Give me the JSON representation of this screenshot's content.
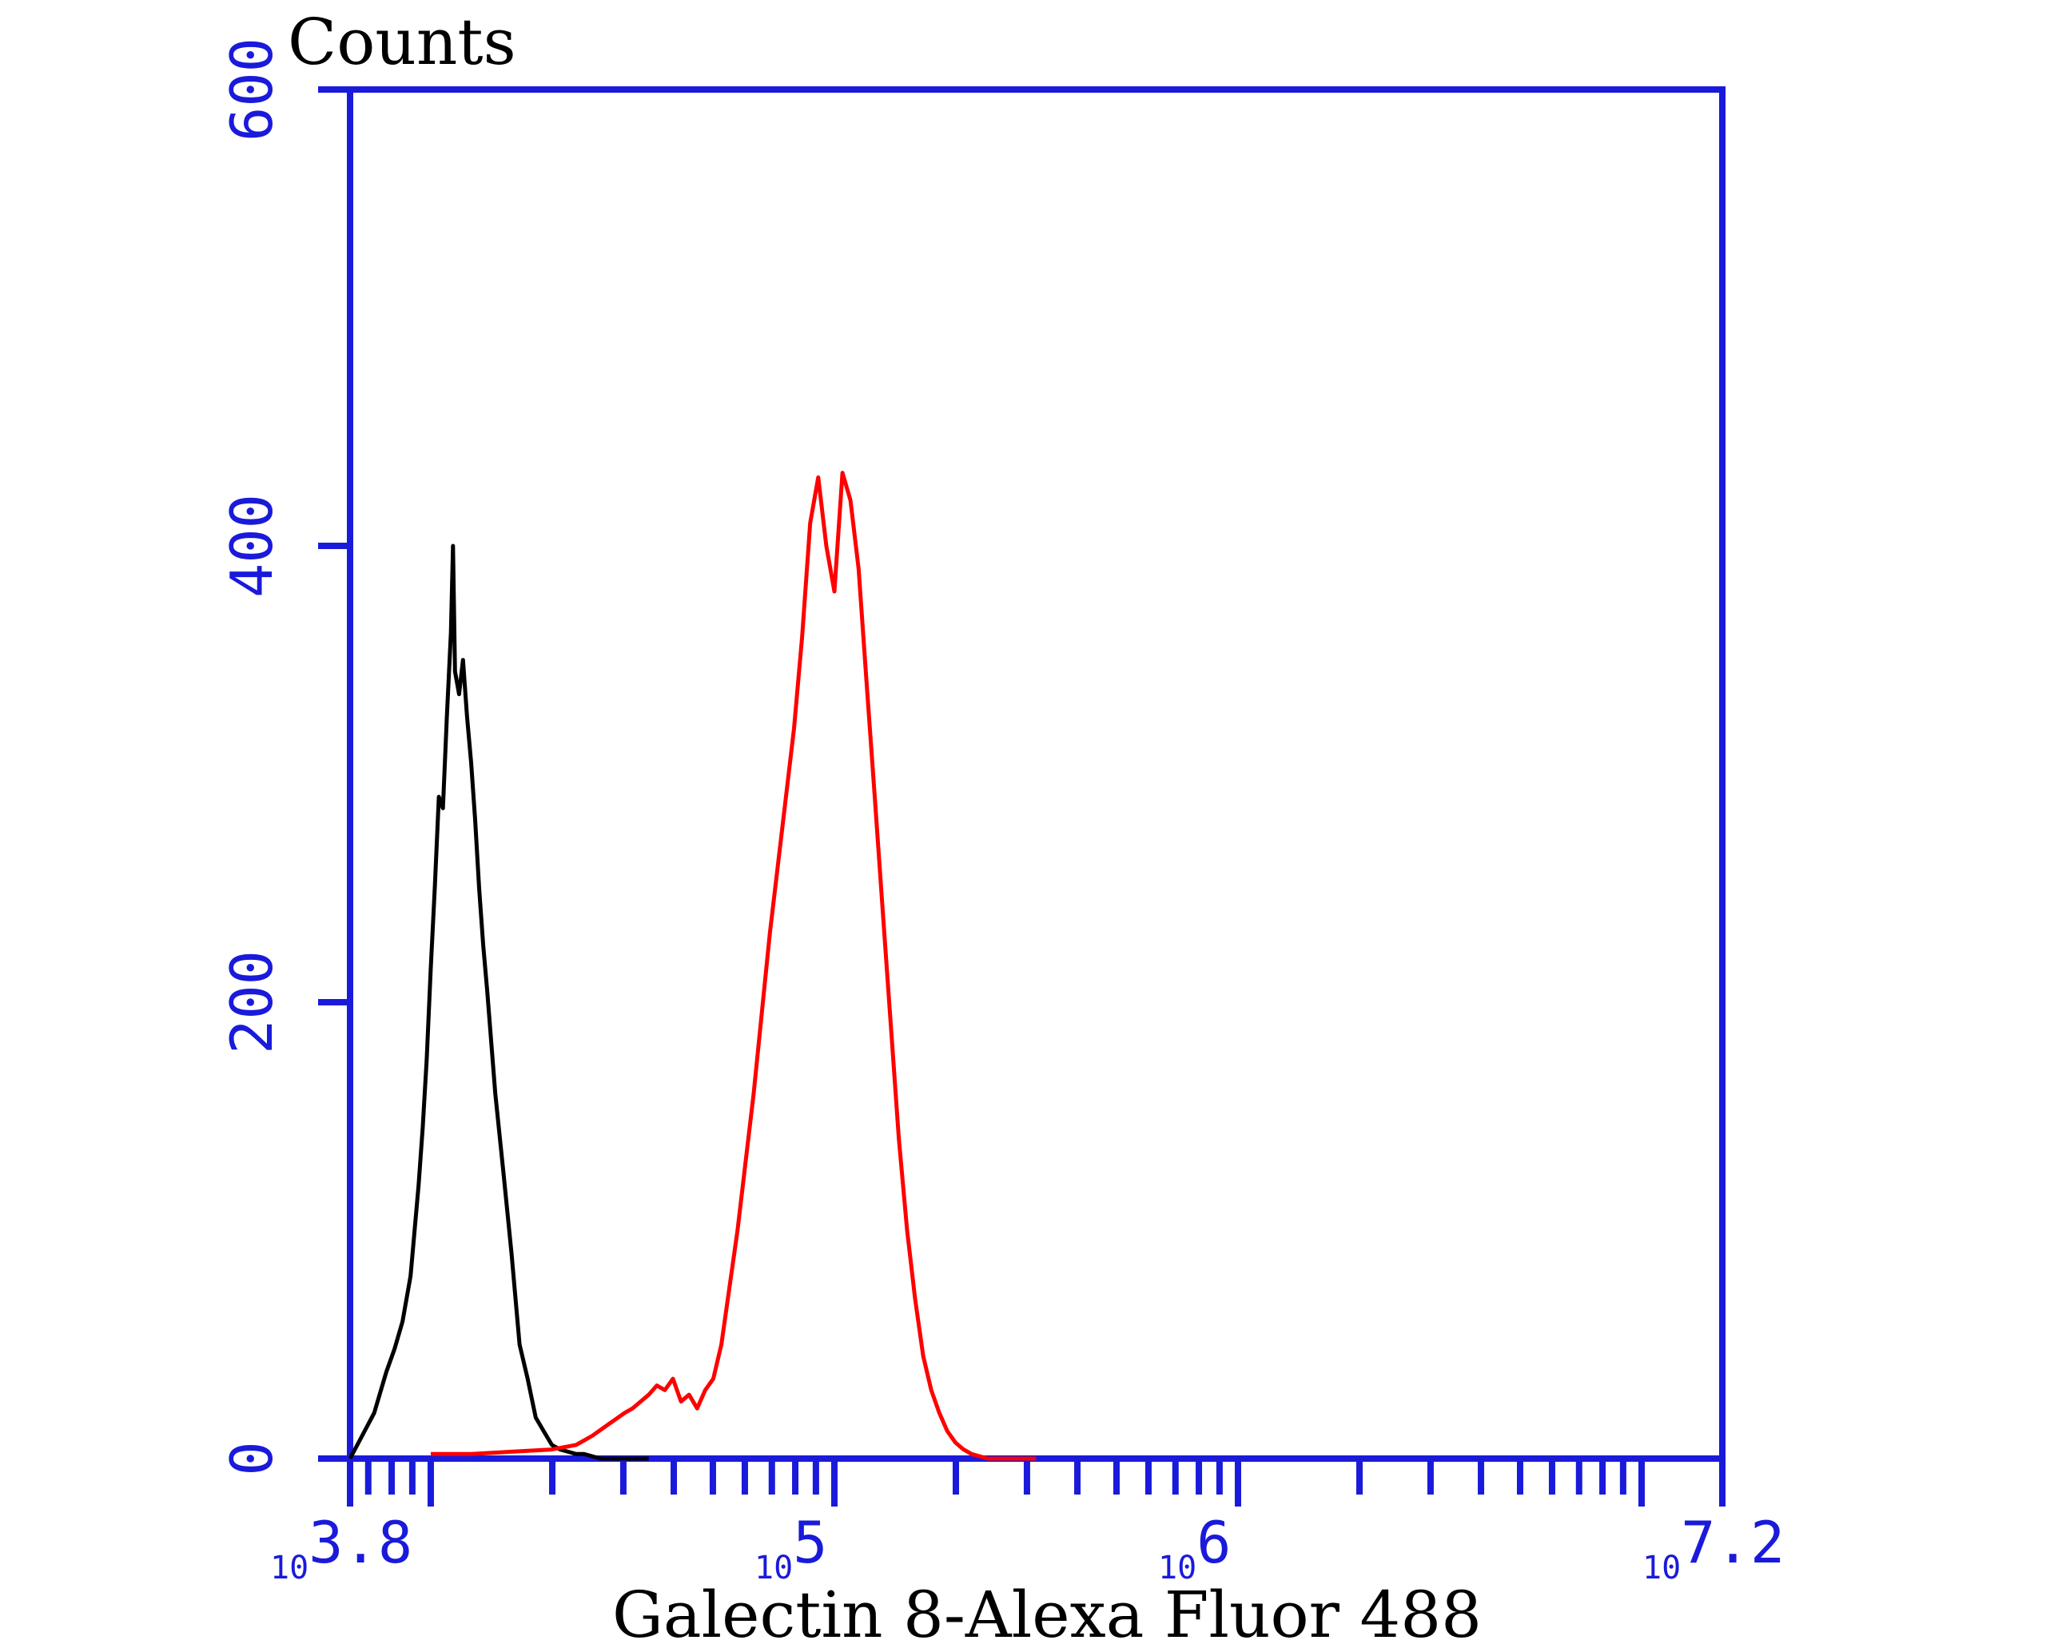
{
  "chart_data": {
    "type": "line",
    "ylabel": "Counts",
    "xlabel": "Galectin 8-Alexa Fluor 488",
    "x_scale": "log10",
    "xlim": [
      6310,
      15849000
    ],
    "ylim": [
      0,
      600
    ],
    "grid": false,
    "y_ticks": [
      {
        "value": 0,
        "label": "0"
      },
      {
        "value": 200,
        "label": "200"
      },
      {
        "value": 400,
        "label": "400"
      },
      {
        "value": 600,
        "label": "600"
      }
    ],
    "x_tick_labels": [
      {
        "value": 6310,
        "base": "10",
        "exp": "3.8"
      },
      {
        "value": 100000,
        "base": "10",
        "exp": "5"
      },
      {
        "value": 1000000,
        "base": "10",
        "exp": "6"
      },
      {
        "value": 15849000,
        "base": "10",
        "exp": "7.2"
      }
    ],
    "series": [
      {
        "color": "#000000",
        "x": [
          6310,
          6760,
          7240,
          7760,
          8130,
          8510,
          8910,
          9330,
          9550,
          9770,
          10000,
          10230,
          10470,
          10720,
          10960,
          11220,
          11350,
          11480,
          11750,
          12020,
          12300,
          12590,
          12880,
          13180,
          13490,
          13800,
          14450,
          15140,
          15850,
          16600,
          17380,
          18200,
          19050,
          19950,
          20890,
          21880,
          22910,
          23990,
          25120,
          26300,
          27540,
          28840,
          30200,
          31620,
          33110,
          34670
        ],
        "values": [
          0,
          10,
          20,
          38,
          48,
          60,
          80,
          120,
          145,
          175,
          215,
          250,
          290,
          285,
          325,
          362,
          400,
          345,
          335,
          350,
          325,
          305,
          280,
          250,
          225,
          205,
          160,
          125,
          90,
          50,
          35,
          18,
          12,
          6,
          4,
          3,
          2,
          2,
          1,
          0,
          0,
          0,
          0,
          0,
          0,
          0
        ]
      },
      {
        "color": "#ff0000",
        "x": [
          10000,
          12600,
          15850,
          19950,
          22910,
          25120,
          27540,
          30200,
          31620,
          33110,
          34670,
          36310,
          38020,
          39810,
          41690,
          43650,
          45710,
          47860,
          50120,
          52480,
          54950,
          57540,
          60260,
          63100,
          66070,
          69180,
          72440,
          75860,
          79430,
          83180,
          87100,
          91200,
          95500,
          100000,
          104700,
          109600,
          114800,
          120200,
          125900,
          131800,
          138000,
          144500,
          151400,
          158500,
          166000,
          173800,
          182000,
          190500,
          199500,
          208900,
          218800,
          229100,
          239900,
          251200,
          263000,
          275400,
          288400,
          302000,
          316200
        ],
        "values": [
          2,
          2,
          3,
          4,
          6,
          10,
          15,
          20,
          22,
          25,
          28,
          32,
          30,
          35,
          25,
          28,
          22,
          30,
          35,
          50,
          75,
          100,
          130,
          160,
          195,
          230,
          260,
          290,
          320,
          360,
          410,
          430,
          400,
          380,
          432,
          420,
          390,
          340,
          290,
          240,
          190,
          140,
          100,
          70,
          45,
          30,
          20,
          12,
          7,
          4,
          2,
          1,
          0,
          0,
          0,
          0,
          0,
          0,
          0
        ]
      }
    ]
  }
}
